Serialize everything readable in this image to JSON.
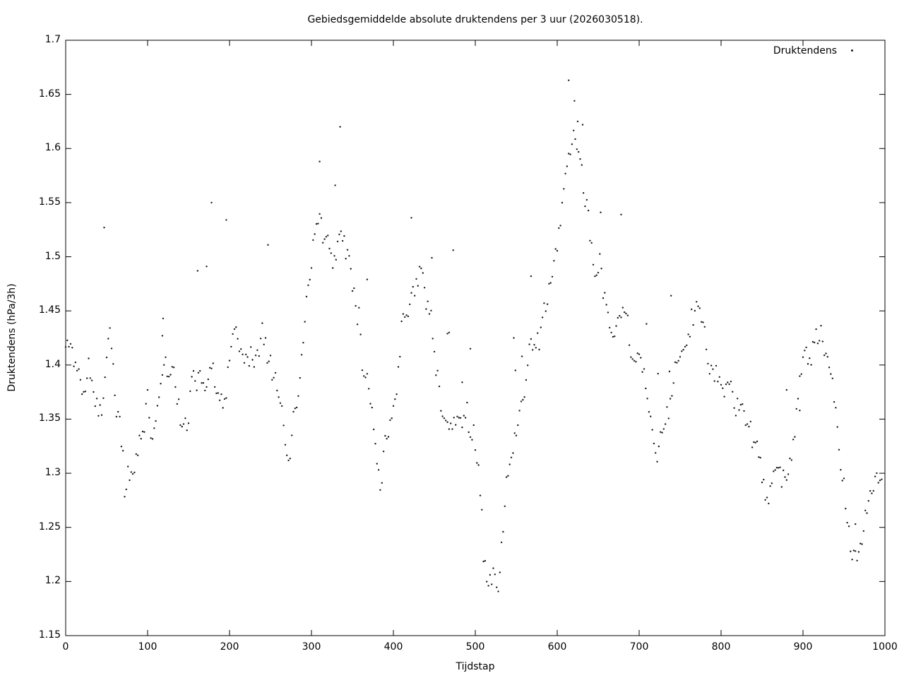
{
  "title": "Gebiedsgemiddelde absolute druktendens per 3 uur (2026030518).",
  "legend": {
    "label": "Druktendens",
    "marker": "dot"
  },
  "x_axis": {
    "label": "Tijdstap",
    "tick_values": [
      0,
      100,
      200,
      300,
      400,
      500,
      600,
      700,
      800,
      900,
      1000
    ],
    "tick_labels": [
      "0",
      "100",
      "200",
      "300",
      "400",
      "500",
      "600",
      "700",
      "800",
      "900",
      "1000"
    ]
  },
  "y_axis": {
    "label": "Druktendens (hPa/3h)",
    "tick_values": [
      1.15,
      1.2,
      1.25,
      1.3,
      1.35,
      1.4,
      1.45,
      1.5,
      1.55,
      1.6,
      1.65,
      1.7
    ],
    "tick_labels": [
      "1.15",
      "1.2",
      "1.25",
      "1.3",
      "1.35",
      "1.4",
      "1.45",
      "1.5",
      "1.55",
      "1.6",
      "1.65",
      "1.7"
    ]
  },
  "style": {
    "point_color": "#1a1a1a",
    "frame_color": "#000000",
    "background": "#ffffff",
    "point_radius": 1.2,
    "tick_length": 8
  },
  "chart_data": {
    "type": "scatter",
    "title": "Gebiedsgemiddelde absolute druktendens per 3 uur (2026030518).",
    "series_name": "Druktendens",
    "xlabel": "Tijdstap",
    "ylabel": "Druktendens (hPa/3h)",
    "xlim": [
      0,
      1000
    ],
    "ylim": [
      1.15,
      1.7
    ],
    "grid": false,
    "legend_position": "top-right",
    "trend_keypoints": [
      [
        0,
        1.415
      ],
      [
        4,
        1.42
      ],
      [
        8,
        1.413
      ],
      [
        12,
        1.404
      ],
      [
        16,
        1.39
      ],
      [
        20,
        1.378
      ],
      [
        24,
        1.374
      ],
      [
        28,
        1.4
      ],
      [
        32,
        1.388
      ],
      [
        36,
        1.366
      ],
      [
        40,
        1.36
      ],
      [
        44,
        1.357
      ],
      [
        48,
        1.39
      ],
      [
        52,
        1.42
      ],
      [
        55,
        1.434
      ],
      [
        58,
        1.4
      ],
      [
        62,
        1.356
      ],
      [
        66,
        1.345
      ],
      [
        70,
        1.312
      ],
      [
        73,
        1.27
      ],
      [
        76,
        1.3
      ],
      [
        80,
        1.298
      ],
      [
        84,
        1.306
      ],
      [
        88,
        1.32
      ],
      [
        92,
        1.336
      ],
      [
        96,
        1.342
      ],
      [
        100,
        1.372
      ],
      [
        104,
        1.338
      ],
      [
        108,
        1.341
      ],
      [
        112,
        1.36
      ],
      [
        116,
        1.386
      ],
      [
        120,
        1.404
      ],
      [
        124,
        1.395
      ],
      [
        128,
        1.393
      ],
      [
        132,
        1.394
      ],
      [
        136,
        1.372
      ],
      [
        140,
        1.345
      ],
      [
        144,
        1.34
      ],
      [
        148,
        1.342
      ],
      [
        152,
        1.375
      ],
      [
        156,
        1.398
      ],
      [
        160,
        1.386
      ],
      [
        164,
        1.39
      ],
      [
        168,
        1.381
      ],
      [
        172,
        1.388
      ],
      [
        176,
        1.394
      ],
      [
        180,
        1.396
      ],
      [
        184,
        1.376
      ],
      [
        188,
        1.362
      ],
      [
        192,
        1.366
      ],
      [
        196,
        1.372
      ],
      [
        200,
        1.41
      ],
      [
        204,
        1.432
      ],
      [
        208,
        1.428
      ],
      [
        212,
        1.415
      ],
      [
        216,
        1.411
      ],
      [
        220,
        1.411
      ],
      [
        224,
        1.41
      ],
      [
        228,
        1.407
      ],
      [
        232,
        1.402
      ],
      [
        236,
        1.42
      ],
      [
        240,
        1.437
      ],
      [
        244,
        1.425
      ],
      [
        248,
        1.41
      ],
      [
        252,
        1.396
      ],
      [
        256,
        1.387
      ],
      [
        260,
        1.368
      ],
      [
        264,
        1.36
      ],
      [
        268,
        1.332
      ],
      [
        271,
        1.305
      ],
      [
        274,
        1.318
      ],
      [
        278,
        1.352
      ],
      [
        282,
        1.372
      ],
      [
        286,
        1.39
      ],
      [
        290,
        1.42
      ],
      [
        294,
        1.468
      ],
      [
        298,
        1.49
      ],
      [
        302,
        1.512
      ],
      [
        306,
        1.525
      ],
      [
        310,
        1.54
      ],
      [
        314,
        1.525
      ],
      [
        318,
        1.514
      ],
      [
        322,
        1.512
      ],
      [
        326,
        1.492
      ],
      [
        330,
        1.5
      ],
      [
        334,
        1.52
      ],
      [
        338,
        1.524
      ],
      [
        342,
        1.502
      ],
      [
        346,
        1.51
      ],
      [
        350,
        1.476
      ],
      [
        354,
        1.462
      ],
      [
        358,
        1.441
      ],
      [
        362,
        1.404
      ],
      [
        366,
        1.391
      ],
      [
        370,
        1.38
      ],
      [
        374,
        1.357
      ],
      [
        378,
        1.33
      ],
      [
        382,
        1.296
      ],
      [
        385,
        1.284
      ],
      [
        388,
        1.328
      ],
      [
        392,
        1.334
      ],
      [
        396,
        1.348
      ],
      [
        400,
        1.36
      ],
      [
        404,
        1.37
      ],
      [
        407,
        1.405
      ],
      [
        410,
        1.438
      ],
      [
        414,
        1.444
      ],
      [
        418,
        1.452
      ],
      [
        422,
        1.47
      ],
      [
        426,
        1.472
      ],
      [
        430,
        1.48
      ],
      [
        434,
        1.493
      ],
      [
        438,
        1.47
      ],
      [
        442,
        1.45
      ],
      [
        446,
        1.444
      ],
      [
        450,
        1.41
      ],
      [
        454,
        1.392
      ],
      [
        458,
        1.36
      ],
      [
        462,
        1.342
      ],
      [
        466,
        1.344
      ],
      [
        470,
        1.344
      ],
      [
        474,
        1.346
      ],
      [
        478,
        1.348
      ],
      [
        482,
        1.35
      ],
      [
        486,
        1.352
      ],
      [
        490,
        1.355
      ],
      [
        494,
        1.338
      ],
      [
        498,
        1.33
      ],
      [
        502,
        1.31
      ],
      [
        506,
        1.29
      ],
      [
        510,
        1.225
      ],
      [
        514,
        1.2
      ],
      [
        518,
        1.205
      ],
      [
        522,
        1.212
      ],
      [
        526,
        1.205
      ],
      [
        529,
        1.197
      ],
      [
        532,
        1.24
      ],
      [
        535,
        1.25
      ],
      [
        538,
        1.285
      ],
      [
        541,
        1.305
      ],
      [
        545,
        1.322
      ],
      [
        549,
        1.34
      ],
      [
        553,
        1.35
      ],
      [
        557,
        1.366
      ],
      [
        561,
        1.378
      ],
      [
        565,
        1.406
      ],
      [
        569,
        1.424
      ],
      [
        573,
        1.408
      ],
      [
        577,
        1.424
      ],
      [
        581,
        1.44
      ],
      [
        585,
        1.452
      ],
      [
        589,
        1.46
      ],
      [
        593,
        1.47
      ],
      [
        597,
        1.5
      ],
      [
        601,
        1.512
      ],
      [
        605,
        1.546
      ],
      [
        609,
        1.558
      ],
      [
        613,
        1.59
      ],
      [
        617,
        1.6
      ],
      [
        621,
        1.616
      ],
      [
        625,
        1.598
      ],
      [
        629,
        1.585
      ],
      [
        633,
        1.554
      ],
      [
        637,
        1.548
      ],
      [
        641,
        1.51
      ],
      [
        645,
        1.492
      ],
      [
        649,
        1.486
      ],
      [
        653,
        1.49
      ],
      [
        657,
        1.462
      ],
      [
        661,
        1.458
      ],
      [
        665,
        1.43
      ],
      [
        669,
        1.422
      ],
      [
        673,
        1.456
      ],
      [
        677,
        1.446
      ],
      [
        681,
        1.452
      ],
      [
        685,
        1.442
      ],
      [
        689,
        1.417
      ],
      [
        693,
        1.396
      ],
      [
        697,
        1.403
      ],
      [
        701,
        1.41
      ],
      [
        705,
        1.39
      ],
      [
        709,
        1.37
      ],
      [
        713,
        1.36
      ],
      [
        717,
        1.34
      ],
      [
        721,
        1.316
      ],
      [
        725,
        1.33
      ],
      [
        729,
        1.334
      ],
      [
        733,
        1.352
      ],
      [
        737,
        1.362
      ],
      [
        741,
        1.384
      ],
      [
        745,
        1.405
      ],
      [
        749,
        1.4
      ],
      [
        753,
        1.412
      ],
      [
        757,
        1.42
      ],
      [
        761,
        1.428
      ],
      [
        765,
        1.448
      ],
      [
        769,
        1.458
      ],
      [
        773,
        1.448
      ],
      [
        777,
        1.436
      ],
      [
        781,
        1.416
      ],
      [
        785,
        1.402
      ],
      [
        789,
        1.398
      ],
      [
        793,
        1.392
      ],
      [
        797,
        1.385
      ],
      [
        801,
        1.382
      ],
      [
        805,
        1.38
      ],
      [
        809,
        1.376
      ],
      [
        813,
        1.38
      ],
      [
        817,
        1.358
      ],
      [
        821,
        1.362
      ],
      [
        825,
        1.358
      ],
      [
        829,
        1.353
      ],
      [
        833,
        1.346
      ],
      [
        837,
        1.34
      ],
      [
        841,
        1.332
      ],
      [
        845,
        1.32
      ],
      [
        849,
        1.303
      ],
      [
        853,
        1.286
      ],
      [
        857,
        1.27
      ],
      [
        861,
        1.29
      ],
      [
        865,
        1.3
      ],
      [
        869,
        1.31
      ],
      [
        873,
        1.302
      ],
      [
        877,
        1.292
      ],
      [
        881,
        1.3
      ],
      [
        885,
        1.312
      ],
      [
        889,
        1.33
      ],
      [
        893,
        1.362
      ],
      [
        897,
        1.39
      ],
      [
        901,
        1.42
      ],
      [
        905,
        1.412
      ],
      [
        909,
        1.398
      ],
      [
        913,
        1.416
      ],
      [
        917,
        1.425
      ],
      [
        921,
        1.428
      ],
      [
        925,
        1.42
      ],
      [
        929,
        1.413
      ],
      [
        933,
        1.392
      ],
      [
        937,
        1.38
      ],
      [
        941,
        1.346
      ],
      [
        945,
        1.305
      ],
      [
        949,
        1.29
      ],
      [
        953,
        1.27
      ],
      [
        957,
        1.24
      ],
      [
        961,
        1.218
      ],
      [
        965,
        1.215
      ],
      [
        969,
        1.234
      ],
      [
        973,
        1.245
      ],
      [
        977,
        1.258
      ],
      [
        981,
        1.274
      ],
      [
        985,
        1.288
      ],
      [
        989,
        1.294
      ],
      [
        993,
        1.296
      ],
      [
        997,
        1.297
      ]
    ],
    "outliers": [
      [
        47,
        1.527
      ],
      [
        118,
        1.427
      ],
      [
        119,
        1.443
      ],
      [
        161,
        1.487
      ],
      [
        172,
        1.491
      ],
      [
        178,
        1.55
      ],
      [
        196,
        1.534
      ],
      [
        247,
        1.511
      ],
      [
        310,
        1.588
      ],
      [
        329,
        1.566
      ],
      [
        335,
        1.62
      ],
      [
        368,
        1.479
      ],
      [
        422,
        1.536
      ],
      [
        447,
        1.499
      ],
      [
        466,
        1.429
      ],
      [
        468,
        1.43
      ],
      [
        473,
        1.506
      ],
      [
        484,
        1.384
      ],
      [
        494,
        1.415
      ],
      [
        547,
        1.425
      ],
      [
        549,
        1.395
      ],
      [
        557,
        1.408
      ],
      [
        568,
        1.482
      ],
      [
        614,
        1.663
      ],
      [
        621,
        1.644
      ],
      [
        625,
        1.625
      ],
      [
        631,
        1.622
      ],
      [
        653,
        1.541
      ],
      [
        678,
        1.539
      ],
      [
        709,
        1.438
      ],
      [
        723,
        1.392
      ],
      [
        737,
        1.394
      ],
      [
        739,
        1.464
      ],
      [
        880,
        1.377
      ],
      [
        896,
        1.358
      ],
      [
        964,
        1.253
      ]
    ],
    "scatter": {
      "x_step": 2,
      "noise_sigma": 0.0055,
      "seed": 11
    }
  }
}
